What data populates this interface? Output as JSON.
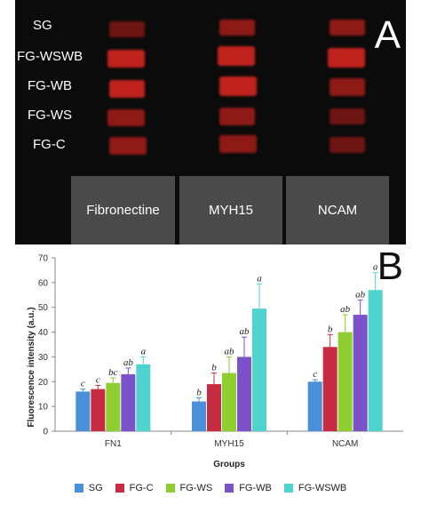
{
  "panel_a": {
    "letter": "A",
    "row_labels": [
      "SG",
      "FG-WSWB",
      "FG-WB",
      "FG-WS",
      "FG-C"
    ],
    "column_labels": [
      "Fibronectine",
      "MYH15",
      "NCAM"
    ]
  },
  "panel_b": {
    "letter": "B",
    "legend": [
      {
        "label": "SG",
        "color": "#4a90d9"
      },
      {
        "label": "FG-C",
        "color": "#c62d42"
      },
      {
        "label": "FG-WS",
        "color": "#8fce2f"
      },
      {
        "label": "FG-WB",
        "color": "#7b52c8"
      },
      {
        "label": "FG-WSWB",
        "color": "#4fd3cf"
      }
    ]
  },
  "chart_data": {
    "type": "bar",
    "categories": [
      "FN1",
      "MYH15",
      "NCAM"
    ],
    "xlabel": "Groups",
    "ylabel": "Fluorescence intensity (a.u.)",
    "ylim": [
      0,
      70
    ],
    "yticks": [
      0,
      10,
      20,
      30,
      40,
      50,
      60,
      70
    ],
    "grid": false,
    "legend_position": "bottom",
    "series": [
      {
        "name": "SG",
        "values": [
          16,
          12,
          20
        ],
        "errors": [
          1,
          1.5,
          0.8
        ],
        "letters": [
          "c",
          "b",
          "c"
        ]
      },
      {
        "name": "FG-C",
        "values": [
          17,
          19,
          34
        ],
        "errors": [
          1.5,
          4.5,
          5
        ],
        "letters": [
          "c",
          "b",
          "b"
        ]
      },
      {
        "name": "FG-WS",
        "values": [
          19.5,
          23.5,
          40
        ],
        "errors": [
          2,
          6.5,
          7
        ],
        "letters": [
          "bc",
          "ab",
          "ab"
        ]
      },
      {
        "name": "FG-WB",
        "values": [
          23,
          30,
          47
        ],
        "errors": [
          2.5,
          8,
          6
        ],
        "letters": [
          "ab",
          "ab",
          "ab"
        ]
      },
      {
        "name": "FG-WSWB",
        "values": [
          27,
          49.5,
          57
        ],
        "errors": [
          3,
          10,
          7
        ],
        "letters": [
          "a",
          "a",
          "a"
        ]
      }
    ]
  }
}
